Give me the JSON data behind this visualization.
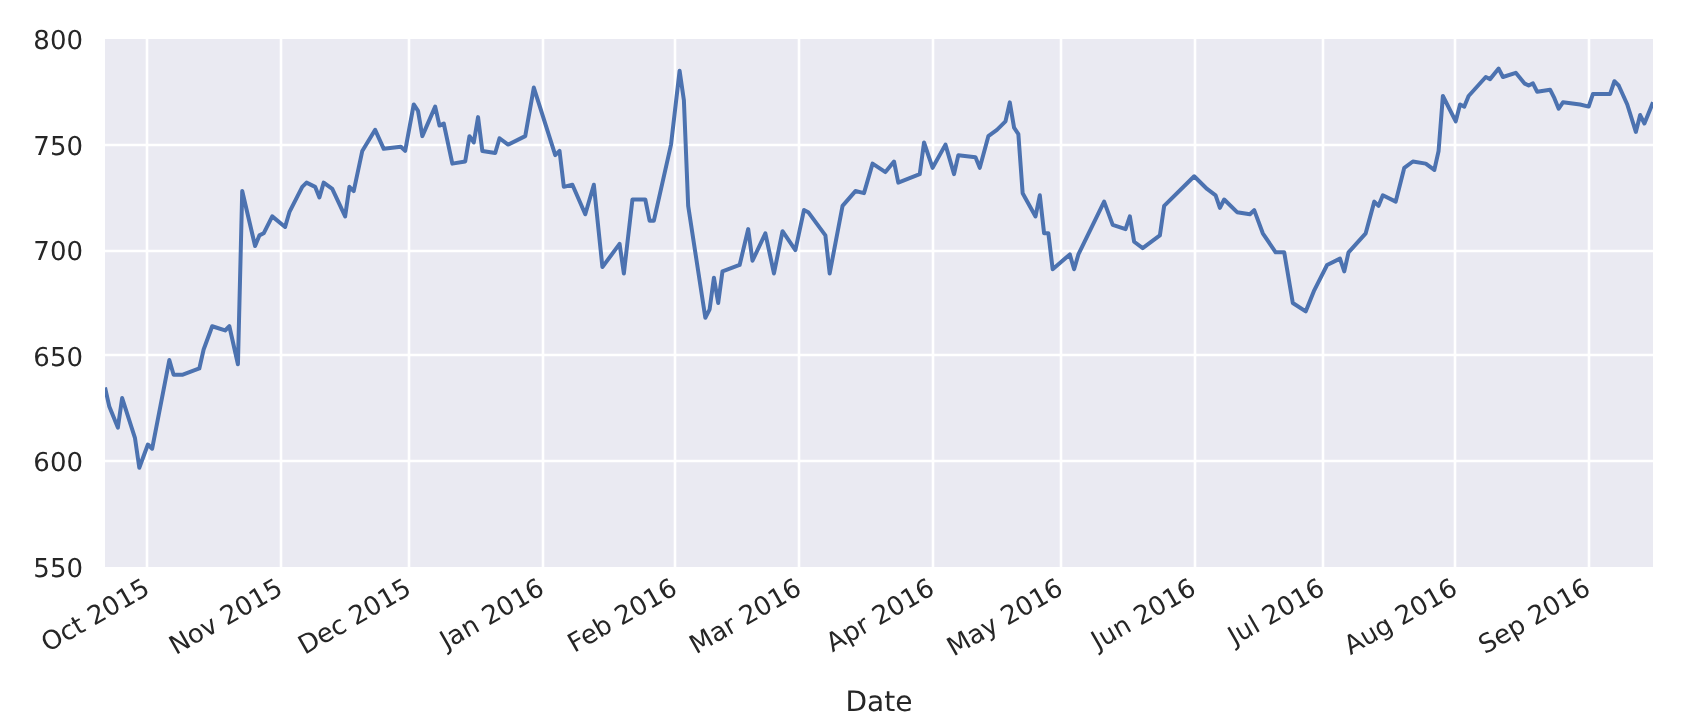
{
  "chart_data": {
    "type": "line",
    "xlabel": "Date",
    "xlim": [
      "2015-09-21",
      "2016-09-16"
    ],
    "ylim": [
      550,
      800
    ],
    "xticks": [
      {
        "value": "2015-10-01",
        "label": "Oct 2015"
      },
      {
        "value": "2015-11-01",
        "label": "Nov 2015"
      },
      {
        "value": "2015-12-01",
        "label": "Dec 2015"
      },
      {
        "value": "2016-01-01",
        "label": "Jan 2016"
      },
      {
        "value": "2016-02-01",
        "label": "Feb 2016"
      },
      {
        "value": "2016-03-01",
        "label": "Mar 2016"
      },
      {
        "value": "2016-04-01",
        "label": "Apr 2016"
      },
      {
        "value": "2016-05-01",
        "label": "May 2016"
      },
      {
        "value": "2016-06-01",
        "label": "Jun 2016"
      },
      {
        "value": "2016-07-01",
        "label": "Jul 2016"
      },
      {
        "value": "2016-08-01",
        "label": "Aug 2016"
      },
      {
        "value": "2016-09-01",
        "label": "Sep 2016"
      }
    ],
    "yticks": [
      550,
      600,
      650,
      700,
      750,
      800
    ],
    "grid": true,
    "marker": "none",
    "line_style": "solid",
    "x": [
      "2015-09-21",
      "2015-09-22",
      "2015-09-24",
      "2015-09-25",
      "2015-09-28",
      "2015-09-29",
      "2015-10-01",
      "2015-10-02",
      "2015-10-06",
      "2015-10-07",
      "2015-10-09",
      "2015-10-13",
      "2015-10-14",
      "2015-10-16",
      "2015-10-19",
      "2015-10-20",
      "2015-10-22",
      "2015-10-23",
      "2015-10-26",
      "2015-10-27",
      "2015-10-28",
      "2015-10-30",
      "2015-11-02",
      "2015-11-03",
      "2015-11-06",
      "2015-11-07",
      "2015-11-09",
      "2015-11-10",
      "2015-11-11",
      "2015-11-13",
      "2015-11-16",
      "2015-11-17",
      "2015-11-18",
      "2015-11-20",
      "2015-11-23",
      "2015-11-25",
      "2015-11-29",
      "2015-11-30",
      "2015-12-02",
      "2015-12-03",
      "2015-12-04",
      "2015-12-07",
      "2015-12-08",
      "2015-12-09",
      "2015-12-11",
      "2015-12-14",
      "2015-12-15",
      "2015-12-16",
      "2015-12-17",
      "2015-12-18",
      "2015-12-21",
      "2015-12-22",
      "2015-12-24",
      "2015-12-28",
      "2015-12-30",
      "2016-01-04",
      "2016-01-05",
      "2016-01-06",
      "2016-01-08",
      "2016-01-11",
      "2016-01-13",
      "2016-01-15",
      "2016-01-19",
      "2016-01-20",
      "2016-01-22",
      "2016-01-25",
      "2016-01-26",
      "2016-01-27",
      "2016-01-29",
      "2016-01-31",
      "2016-02-02",
      "2016-02-03",
      "2016-02-04",
      "2016-02-08",
      "2016-02-09",
      "2016-02-10",
      "2016-02-11",
      "2016-02-12",
      "2016-02-16",
      "2016-02-18",
      "2016-02-19",
      "2016-02-22",
      "2016-02-24",
      "2016-02-26",
      "2016-02-29",
      "2016-03-02",
      "2016-03-03",
      "2016-03-07",
      "2016-03-08",
      "2016-03-11",
      "2016-03-14",
      "2016-03-16",
      "2016-03-18",
      "2016-03-21",
      "2016-03-23",
      "2016-03-24",
      "2016-03-29",
      "2016-03-30",
      "2016-04-01",
      "2016-04-04",
      "2016-04-06",
      "2016-04-07",
      "2016-04-11",
      "2016-04-12",
      "2016-04-14",
      "2016-04-16",
      "2016-04-18",
      "2016-04-19",
      "2016-04-20",
      "2016-04-21",
      "2016-04-22",
      "2016-04-25",
      "2016-04-26",
      "2016-04-27",
      "2016-04-28",
      "2016-04-29",
      "2016-05-03",
      "2016-05-04",
      "2016-05-05",
      "2016-05-11",
      "2016-05-13",
      "2016-05-16",
      "2016-05-17",
      "2016-05-18",
      "2016-05-20",
      "2016-05-24",
      "2016-05-25",
      "2016-06-01",
      "2016-06-04",
      "2016-06-06",
      "2016-06-07",
      "2016-06-08",
      "2016-06-11",
      "2016-06-14",
      "2016-06-15",
      "2016-06-17",
      "2016-06-20",
      "2016-06-22",
      "2016-06-24",
      "2016-06-27",
      "2016-06-29",
      "2016-06-30",
      "2016-07-02",
      "2016-07-05",
      "2016-07-06",
      "2016-07-07",
      "2016-07-11",
      "2016-07-13",
      "2016-07-14",
      "2016-07-15",
      "2016-07-18",
      "2016-07-20",
      "2016-07-22",
      "2016-07-25",
      "2016-07-27",
      "2016-07-28",
      "2016-07-29",
      "2016-08-01",
      "2016-08-02",
      "2016-08-03",
      "2016-08-04",
      "2016-08-08",
      "2016-08-09",
      "2016-08-11",
      "2016-08-12",
      "2016-08-15",
      "2016-08-17",
      "2016-08-18",
      "2016-08-19",
      "2016-08-20",
      "2016-08-23",
      "2016-08-24",
      "2016-08-25",
      "2016-08-26",
      "2016-08-30",
      "2016-09-01",
      "2016-09-02",
      "2016-09-06",
      "2016-09-07",
      "2016-09-08",
      "2016-09-10",
      "2016-09-12",
      "2016-09-13",
      "2016-09-14",
      "2016-09-16"
    ],
    "series": [
      {
        "color": "#4c72b0",
        "values": [
          635,
          626,
          616,
          630,
          611,
          597,
          608,
          606,
          648,
          641,
          641,
          644,
          653,
          664,
          662,
          664,
          646,
          728,
          702,
          707,
          708,
          716,
          711,
          718,
          730,
          732,
          730,
          725,
          732,
          729,
          716,
          730,
          728,
          747,
          757,
          748,
          749,
          747,
          769,
          766,
          754,
          768,
          759,
          760,
          741,
          742,
          754,
          751,
          763,
          747,
          746,
          753,
          750,
          754,
          777,
          745,
          747,
          730,
          731,
          717,
          731,
          692,
          703,
          689,
          724,
          724,
          714,
          714,
          732,
          750,
          785,
          771,
          721,
          668,
          672,
          687,
          675,
          690,
          693,
          710,
          695,
          708,
          689,
          709,
          700,
          719,
          718,
          707,
          689,
          721,
          728,
          727,
          741,
          737,
          742,
          732,
          736,
          751,
          739,
          750,
          736,
          745,
          744,
          739,
          754,
          757,
          761,
          770,
          758,
          755,
          727,
          716,
          726,
          708,
          708,
          691,
          698,
          691,
          698,
          723,
          712,
          710,
          716,
          704,
          701,
          707,
          721,
          735,
          729,
          726,
          720,
          724,
          718,
          717,
          719,
          708,
          699,
          699,
          675,
          671,
          681,
          685,
          693,
          696,
          690,
          699,
          708,
          723,
          721,
          726,
          723,
          739,
          742,
          741,
          738,
          747,
          773,
          761,
          769,
          768,
          773,
          782,
          781,
          786,
          782,
          784,
          779,
          778,
          779,
          775,
          776,
          772,
          767,
          770,
          769,
          768,
          774,
          774,
          780,
          778,
          769,
          756,
          764,
          760,
          770
        ]
      }
    ]
  }
}
